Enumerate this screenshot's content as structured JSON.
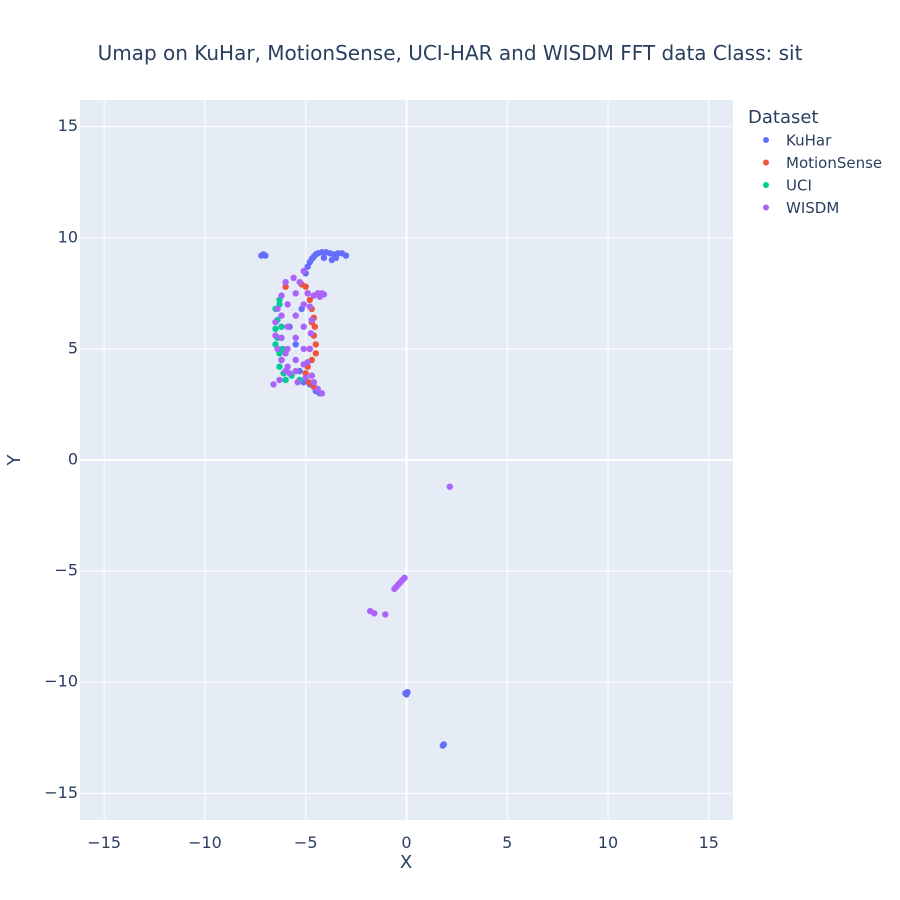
{
  "chart_data": {
    "type": "scatter",
    "title": "Umap on KuHar, MotionSense, UCI-HAR and WISDM   FFT data   Class: sit",
    "xlabel": "X",
    "ylabel": "Y",
    "xlim": [
      -16.2,
      16.2
    ],
    "ylim": [
      -16.2,
      16.2
    ],
    "xticks": [
      -15,
      -10,
      -5,
      0,
      5,
      10,
      15
    ],
    "yticks": [
      -15,
      -10,
      -5,
      0,
      5,
      10,
      15
    ],
    "xtick_labels": [
      "−15",
      "−10",
      "−5",
      "0",
      "5",
      "10",
      "15"
    ],
    "ytick_labels": [
      "−15",
      "−10",
      "−5",
      "0",
      "5",
      "10",
      "15"
    ],
    "grid": true,
    "legend": {
      "title": "Dataset",
      "placement": "right"
    },
    "series": [
      {
        "name": "KuHar",
        "color": "#636efa",
        "points": [
          [
            -7.2,
            9.2
          ],
          [
            -7.1,
            9.25
          ],
          [
            -7.0,
            9.2
          ],
          [
            -5.0,
            8.4
          ],
          [
            -4.9,
            8.7
          ],
          [
            -4.8,
            8.9
          ],
          [
            -4.7,
            9.05
          ],
          [
            -4.6,
            9.15
          ],
          [
            -4.5,
            9.25
          ],
          [
            -4.4,
            9.3
          ],
          [
            -4.2,
            9.35
          ],
          [
            -4.0,
            9.35
          ],
          [
            -3.8,
            9.3
          ],
          [
            -3.6,
            9.25
          ],
          [
            -3.4,
            9.3
          ],
          [
            -3.2,
            9.3
          ],
          [
            -3.0,
            9.2
          ],
          [
            -3.5,
            9.1
          ],
          [
            -3.7,
            9.0
          ],
          [
            -4.1,
            9.1
          ],
          [
            -5.3,
            4.0
          ],
          [
            -5.1,
            3.5
          ],
          [
            -4.8,
            3.4
          ],
          [
            -4.5,
            3.1
          ],
          [
            -4.3,
            3.0
          ],
          [
            -5.8,
            6.0
          ],
          [
            -5.5,
            5.2
          ],
          [
            -5.2,
            6.8
          ],
          [
            -0.05,
            -10.5
          ],
          [
            0.0,
            -10.55
          ],
          [
            0.05,
            -10.45
          ],
          [
            1.8,
            -12.85
          ],
          [
            1.85,
            -12.8
          ]
        ]
      },
      {
        "name": "MotionSense",
        "color": "#ef553b",
        "points": [
          [
            -5.2,
            7.9
          ],
          [
            -5.0,
            7.8
          ],
          [
            -4.8,
            7.2
          ],
          [
            -4.7,
            6.8
          ],
          [
            -4.6,
            6.4
          ],
          [
            -4.55,
            6.0
          ],
          [
            -4.6,
            5.6
          ],
          [
            -4.5,
            5.2
          ],
          [
            -4.5,
            4.8
          ],
          [
            -4.7,
            4.5
          ],
          [
            -4.9,
            4.2
          ],
          [
            -5.0,
            3.9
          ],
          [
            -4.85,
            3.5
          ],
          [
            -4.6,
            3.3
          ],
          [
            -4.8,
            5.0
          ],
          [
            -4.7,
            6.2
          ],
          [
            -4.9,
            7.5
          ],
          [
            -6.0,
            7.8
          ]
        ]
      },
      {
        "name": "UCI",
        "color": "#00cc96",
        "points": [
          [
            -6.3,
            7.2
          ],
          [
            -6.5,
            6.8
          ],
          [
            -6.4,
            6.3
          ],
          [
            -6.5,
            5.9
          ],
          [
            -6.4,
            5.5
          ],
          [
            -6.5,
            5.2
          ],
          [
            -6.3,
            4.8
          ],
          [
            -6.2,
            4.5
          ],
          [
            -6.3,
            4.2
          ],
          [
            -6.1,
            3.9
          ],
          [
            -6.0,
            3.6
          ],
          [
            -5.7,
            3.8
          ],
          [
            -5.3,
            3.6
          ],
          [
            -6.2,
            6.0
          ],
          [
            -6.3,
            7.0
          ],
          [
            -6.15,
            5.0
          ]
        ]
      },
      {
        "name": "WISDM",
        "color": "#ab63fa",
        "points": [
          [
            -6.6,
            3.4
          ],
          [
            -6.3,
            3.6
          ],
          [
            -6.0,
            4.0
          ],
          [
            -5.8,
            3.9
          ],
          [
            -6.2,
            4.5
          ],
          [
            -6.4,
            5.0
          ],
          [
            -6.5,
            5.6
          ],
          [
            -6.5,
            6.2
          ],
          [
            -6.4,
            6.8
          ],
          [
            -6.2,
            7.4
          ],
          [
            -6.0,
            8.0
          ],
          [
            -5.6,
            8.2
          ],
          [
            -5.3,
            8.0
          ],
          [
            -5.1,
            8.5
          ],
          [
            -4.9,
            7.5
          ],
          [
            -4.8,
            6.9
          ],
          [
            -4.7,
            6.3
          ],
          [
            -4.75,
            5.7
          ],
          [
            -4.8,
            5.0
          ],
          [
            -4.9,
            4.4
          ],
          [
            -4.7,
            3.8
          ],
          [
            -4.4,
            3.2
          ],
          [
            -4.2,
            3.0
          ],
          [
            -4.6,
            3.5
          ],
          [
            -5.0,
            3.7
          ],
          [
            -5.4,
            3.5
          ],
          [
            -5.9,
            7.0
          ],
          [
            -5.9,
            6.0
          ],
          [
            -5.9,
            5.0
          ],
          [
            -5.9,
            4.2
          ],
          [
            -5.5,
            7.5
          ],
          [
            -5.5,
            6.5
          ],
          [
            -5.5,
            5.5
          ],
          [
            -5.5,
            4.5
          ],
          [
            -5.5,
            4.0
          ],
          [
            -5.1,
            7.0
          ],
          [
            -5.1,
            6.0
          ],
          [
            -5.1,
            5.0
          ],
          [
            -5.1,
            4.3
          ],
          [
            -6.2,
            6.5
          ],
          [
            -6.2,
            5.5
          ],
          [
            -6.0,
            4.8
          ],
          [
            -4.6,
            7.4
          ],
          [
            -4.4,
            7.5
          ],
          [
            -4.2,
            7.5
          ],
          [
            -4.1,
            7.45
          ],
          [
            -4.3,
            7.35
          ],
          [
            2.15,
            -1.2
          ],
          [
            -0.1,
            -5.3
          ],
          [
            -0.2,
            -5.4
          ],
          [
            -0.3,
            -5.5
          ],
          [
            -0.4,
            -5.6
          ],
          [
            -0.5,
            -5.7
          ],
          [
            -0.6,
            -5.8
          ],
          [
            -1.8,
            -6.8
          ],
          [
            -1.6,
            -6.9
          ],
          [
            -1.05,
            -6.95
          ]
        ]
      }
    ]
  }
}
